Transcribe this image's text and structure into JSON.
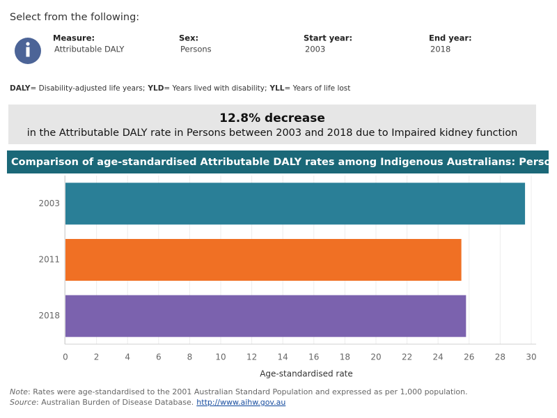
{
  "header": {
    "prompt": "Select from the following:",
    "filters": [
      {
        "label": "Measure:",
        "value": "Attributable DALY"
      },
      {
        "label": "Sex:",
        "value": "Persons"
      },
      {
        "label": "Start year:",
        "value": "2003"
      },
      {
        "label": "End year:",
        "value": "2018"
      }
    ]
  },
  "definitions": [
    {
      "term": "DALY",
      "text": "= Disability-adjusted life years;"
    },
    {
      "term": "YLD",
      "text": "= Years lived with disability;"
    },
    {
      "term": "YLL",
      "text": "= Years of life lost"
    }
  ],
  "summary": {
    "headline": "12.8% decrease",
    "detail": "in the Attributable DALY rate in Persons between 2003 and 2018 due to Impaired kidney function"
  },
  "chart_data": {
    "type": "bar",
    "orientation": "horizontal",
    "title": "Comparison of age-standardised Attributable DALY rates among Indigenous Australians: Persons",
    "categories": [
      "2003",
      "2011",
      "2018"
    ],
    "values": [
      29.6,
      25.5,
      25.8
    ],
    "colors": [
      "#2a7f97",
      "#f07024",
      "#7b62ae"
    ],
    "xlabel": "Age-standardised rate",
    "xlim": [
      0,
      30
    ],
    "xticks": [
      0,
      2,
      4,
      6,
      8,
      10,
      12,
      14,
      16,
      18,
      20,
      22,
      24,
      26,
      28,
      30
    ],
    "grid": true
  },
  "footnotes": {
    "note": {
      "label": "Note",
      "text": ": Rates were age-standardised to the 2001 Australian Standard Population and expressed as per 1,000 population."
    },
    "source": {
      "label": "Source",
      "text": ": Australian Burden of Disease Database.",
      "link": "http://www.aihw.gov.au"
    }
  }
}
